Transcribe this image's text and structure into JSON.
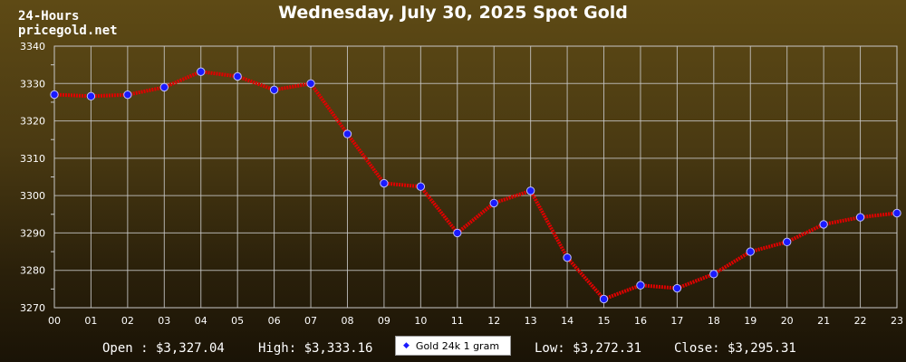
{
  "header": {
    "title": "Wednesday, July 30, 2025 Spot Gold",
    "period": "24-Hours",
    "site": "pricegold.net"
  },
  "footer": {
    "open": "Open : $3,327.04",
    "high": "High: $3,333.16",
    "low": "Low: $3,272.31",
    "close": "Close: $3,295.31",
    "legend_label": "Gold 24k 1 gram",
    "legend_marker": "◆"
  },
  "colors": {
    "line": "#e00000",
    "marker_fill": "#1a1aff",
    "marker_stroke": "#bfbfff",
    "grid": "#c8c8c8",
    "text": "#ffffff"
  },
  "chart_data": {
    "type": "line",
    "title": "Wednesday, July 30, 2025 Spot Gold",
    "categories": [
      "00",
      "01",
      "02",
      "03",
      "04",
      "05",
      "06",
      "07",
      "08",
      "09",
      "10",
      "11",
      "12",
      "13",
      "14",
      "15",
      "16",
      "17",
      "18",
      "19",
      "20",
      "21",
      "22",
      "23"
    ],
    "series": [
      {
        "name": "Gold 24k 1 gram",
        "values": [
          3327.04,
          3326.6,
          3327.0,
          3329.0,
          3333.16,
          3331.9,
          3328.3,
          3330.0,
          3316.5,
          3303.3,
          3302.4,
          3290.0,
          3298.0,
          3301.3,
          3283.4,
          3272.31,
          3276.0,
          3275.2,
          3279.0,
          3285.0,
          3287.6,
          3292.3,
          3294.2,
          3295.31
        ]
      }
    ],
    "ylim": [
      3270,
      3340
    ],
    "yticks": [
      3270,
      3280,
      3290,
      3300,
      3310,
      3320,
      3330,
      3340
    ],
    "grid": true,
    "legend_position": "bottom-center"
  }
}
